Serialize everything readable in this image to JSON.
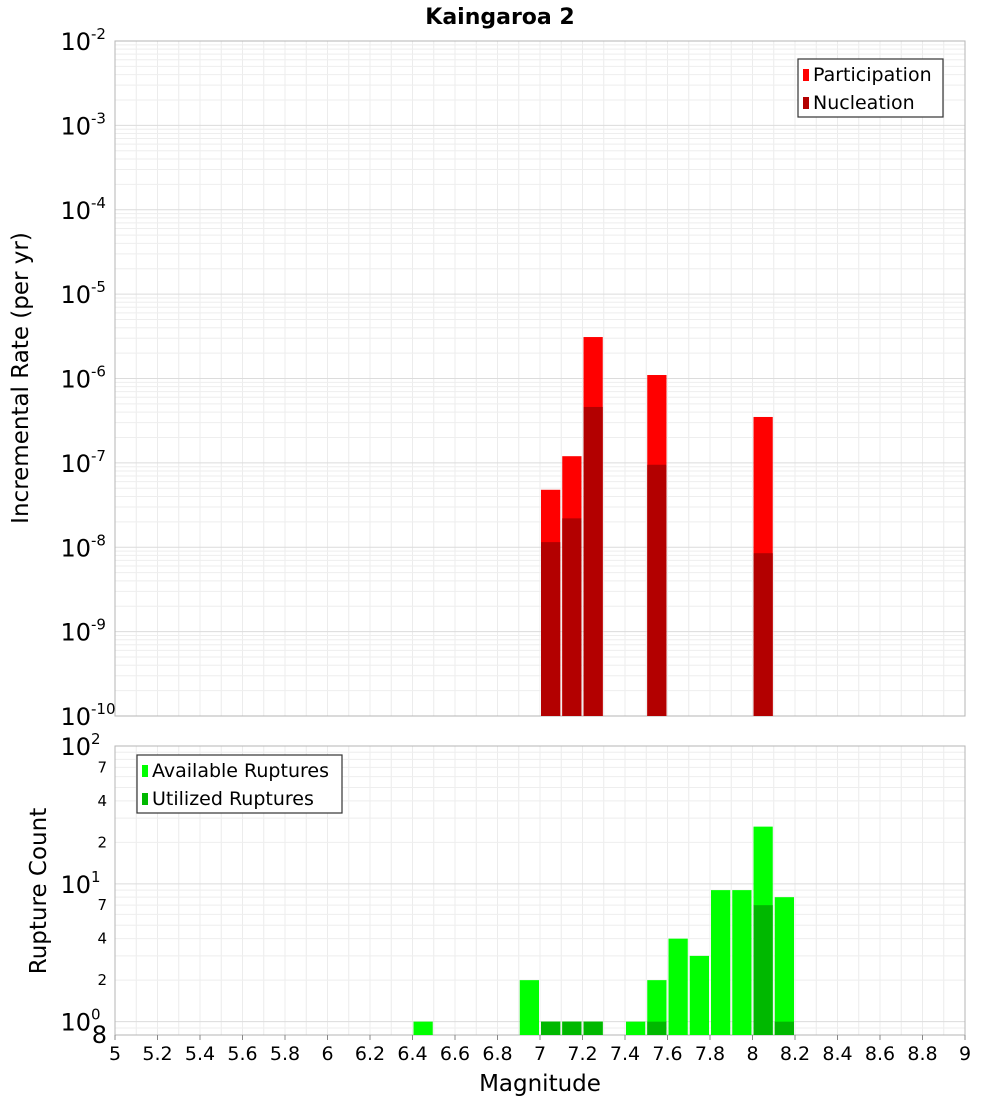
{
  "chart_data": [
    {
      "type": "bar",
      "title": "Kaingaroa 2",
      "ylabel": "Incremental Rate (per yr)",
      "yscale": "log",
      "ylim": [
        1e-10,
        0.01
      ],
      "xlim": [
        5,
        9
      ],
      "bin_width": 0.1,
      "y_tick_labels": [
        {
          "value": 0.01,
          "base": "10",
          "exp": "-2"
        },
        {
          "value": 0.001,
          "base": "10",
          "exp": "-3"
        },
        {
          "value": 0.0001,
          "base": "10",
          "exp": "-4"
        },
        {
          "value": 1e-05,
          "base": "10",
          "exp": "-5"
        },
        {
          "value": 1e-06,
          "base": "10",
          "exp": "-6"
        },
        {
          "value": 1e-07,
          "base": "10",
          "exp": "-7"
        },
        {
          "value": 1e-08,
          "base": "10",
          "exp": "-8"
        },
        {
          "value": 1e-09,
          "base": "10",
          "exp": "-9"
        },
        {
          "value": 1e-10,
          "base": "10",
          "exp": "-10"
        }
      ],
      "legend": {
        "position": "top-right"
      },
      "series": [
        {
          "name": "Participation",
          "color": "#ff0000",
          "points": [
            [
              7.05,
              4.8e-08
            ],
            [
              7.15,
              1.2e-07
            ],
            [
              7.25,
              3.1e-06
            ],
            [
              7.55,
              1.1e-06
            ],
            [
              8.05,
              3.5e-07
            ]
          ]
        },
        {
          "name": "Nucleation",
          "color": "#b30000",
          "points": [
            [
              7.05,
              1.15e-08
            ],
            [
              7.15,
              2.2e-08
            ],
            [
              7.25,
              4.6e-07
            ],
            [
              7.55,
              9.5e-08
            ],
            [
              8.05,
              8.5e-09
            ]
          ]
        }
      ]
    },
    {
      "type": "bar",
      "ylabel": "Rupture Count",
      "xlabel": "Magnitude",
      "yscale": "log",
      "ylim": [
        0.8,
        100
      ],
      "xlim": [
        5,
        9
      ],
      "bin_width": 0.1,
      "y_major_ticks": [
        {
          "value": 100,
          "base": "10",
          "exp": "2"
        },
        {
          "value": 10,
          "base": "10",
          "exp": "1"
        },
        {
          "value": 1,
          "base": "10",
          "exp": "0"
        }
      ],
      "y_minor_ticks": [
        {
          "value": 70,
          "label": "7"
        },
        {
          "value": 40,
          "label": "4"
        },
        {
          "value": 20,
          "label": "2"
        },
        {
          "value": 7,
          "label": "7"
        },
        {
          "value": 4,
          "label": "4"
        },
        {
          "value": 2,
          "label": "2"
        }
      ],
      "y_bottom_label": "8",
      "x_ticks": [
        "5",
        "5.2",
        "5.4",
        "5.6",
        "5.8",
        "6",
        "6.2",
        "6.4",
        "6.6",
        "6.8",
        "7",
        "7.2",
        "7.4",
        "7.6",
        "7.8",
        "8",
        "8.2",
        "8.4",
        "8.6",
        "8.8",
        "9"
      ],
      "legend": {
        "position": "top-left"
      },
      "series": [
        {
          "name": "Available Ruptures",
          "color": "#00ff00",
          "points": [
            [
              6.45,
              1
            ],
            [
              6.95,
              2
            ],
            [
              7.05,
              1
            ],
            [
              7.15,
              1
            ],
            [
              7.25,
              1
            ],
            [
              7.45,
              1
            ],
            [
              7.55,
              2
            ],
            [
              7.65,
              4
            ],
            [
              7.75,
              3
            ],
            [
              7.85,
              9
            ],
            [
              7.95,
              9
            ],
            [
              8.05,
              26
            ],
            [
              8.15,
              8
            ]
          ]
        },
        {
          "name": "Utilized Ruptures",
          "color": "#00b800",
          "points": [
            [
              7.05,
              1
            ],
            [
              7.15,
              1
            ],
            [
              7.25,
              1
            ],
            [
              7.55,
              1
            ],
            [
              8.05,
              7
            ],
            [
              8.15,
              1
            ]
          ]
        }
      ]
    }
  ]
}
